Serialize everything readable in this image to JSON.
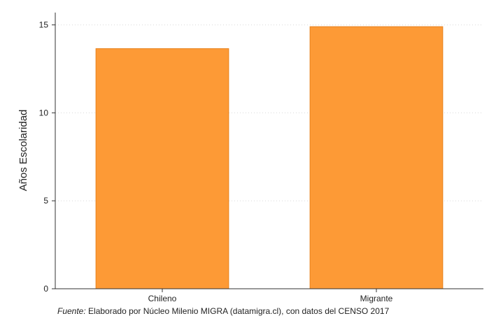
{
  "chart_data": {
    "type": "bar",
    "categories": [
      "Chileno",
      "Migrante"
    ],
    "values": [
      13.65,
      14.9
    ],
    "ylabel": "Años Escolaridad",
    "ylim": [
      0,
      15.7
    ],
    "yticks": [
      0,
      5,
      10,
      15
    ],
    "grid": true,
    "bar_color": "#fd9a36",
    "bar_edge_color": "#e8821c",
    "source_prefix": "Fuente:",
    "source_text": " Elaborado por Núcleo Milenio MIGRA (datamigra.cl), con datos del CENSO 2017"
  }
}
